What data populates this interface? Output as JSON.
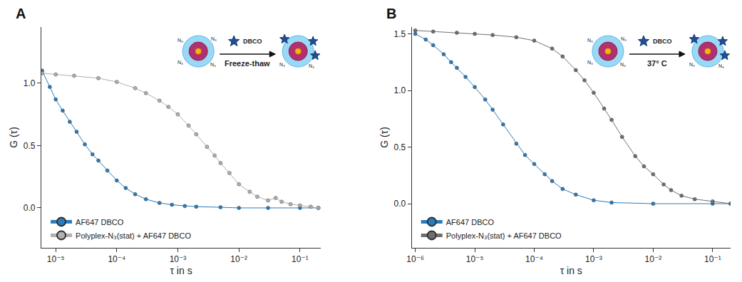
{
  "chart_data": [
    {
      "type": "scatter",
      "title": "A",
      "x_label": "τ in s",
      "y_label": "G (τ)",
      "log": "x",
      "grid": false,
      "legend": "lower left",
      "marker": "circle",
      "xlim": [
        5.8e-06,
        0.22
      ],
      "xticks": [
        {
          "value": 1e-05,
          "label": "10⁻⁵"
        },
        {
          "value": 0.0001,
          "label": "10⁻⁴"
        },
        {
          "value": 0.001,
          "label": "10⁻³"
        },
        {
          "value": 0.01,
          "label": "10⁻²"
        },
        {
          "value": 0.1,
          "label": "10⁻¹"
        }
      ],
      "ylim": [
        -0.32,
        1.45
      ],
      "yticks": [
        {
          "value": 0,
          "label": "0.0"
        },
        {
          "value": 0.5,
          "label": "0.5"
        },
        {
          "value": 1,
          "label": "1.0"
        }
      ],
      "annotations": {
        "reagent": "DBCO",
        "condition": "Freeze-thaw",
        "surface_group": "N₃"
      },
      "series": [
        {
          "name": "AF647 DBCO",
          "color": "#2b7bba",
          "x": [
            6e-06,
            8e-06,
            1e-05,
            1.3e-05,
            1.7e-05,
            2.2e-05,
            3e-05,
            4e-05,
            5e-05,
            7e-05,
            0.0001,
            0.00014,
            0.0002,
            0.0003,
            0.0005,
            0.0008,
            0.0013,
            0.002,
            0.005,
            0.01,
            0.03,
            0.1,
            0.2
          ],
          "values": [
            1.1,
            0.97,
            0.87,
            0.78,
            0.69,
            0.61,
            0.51,
            0.43,
            0.38,
            0.3,
            0.22,
            0.16,
            0.11,
            0.07,
            0.04,
            0.025,
            0.015,
            0.01,
            0.005,
            0.0,
            0.0,
            0.0,
            0.0
          ]
        },
        {
          "name": "Polyplex-N₃(stat) + AF647 DBCO",
          "color": "#b0b0b0",
          "x": [
            6e-06,
            1e-05,
            2e-05,
            5e-05,
            0.0001,
            0.0002,
            0.0003,
            0.0005,
            0.0007,
            0.001,
            0.0015,
            0.002,
            0.003,
            0.004,
            0.005,
            0.007,
            0.01,
            0.015,
            0.02,
            0.03,
            0.04,
            0.05,
            0.07,
            0.1,
            0.15,
            0.2
          ],
          "values": [
            1.08,
            1.07,
            1.06,
            1.04,
            1.01,
            0.96,
            0.92,
            0.86,
            0.81,
            0.75,
            0.66,
            0.59,
            0.49,
            0.42,
            0.36,
            0.28,
            0.19,
            0.13,
            0.09,
            0.06,
            0.08,
            0.05,
            0.03,
            0.02,
            0.01,
            0.0
          ]
        }
      ]
    },
    {
      "type": "scatter",
      "title": "B",
      "x_label": "τ in s",
      "y_label": "G (τ)",
      "log": "x",
      "grid": false,
      "legend": "lower left",
      "marker": "circle",
      "xlim": [
        8.7e-07,
        0.2
      ],
      "xticks": [
        {
          "value": 1e-06,
          "label": "10⁻⁶"
        },
        {
          "value": 1e-05,
          "label": "10⁻⁵"
        },
        {
          "value": 0.0001,
          "label": "10⁻⁴"
        },
        {
          "value": 0.001,
          "label": "10⁻³"
        },
        {
          "value": 0.01,
          "label": "10⁻²"
        },
        {
          "value": 0.1,
          "label": "10⁻¹"
        }
      ],
      "ylim": [
        -0.39,
        1.56
      ],
      "yticks": [
        {
          "value": 0,
          "label": "0.0"
        },
        {
          "value": 0.5,
          "label": "0.5"
        },
        {
          "value": 1,
          "label": "1.0"
        },
        {
          "value": 1.5,
          "label": "1.5"
        }
      ],
      "annotations": {
        "reagent": "DBCO",
        "condition": "37° C",
        "surface_group": "N₃"
      },
      "series": [
        {
          "name": "AF647 DBCO",
          "color": "#2b7bba",
          "x": [
            1e-06,
            1.5e-06,
            2e-06,
            3e-06,
            4e-06,
            5e-06,
            7e-06,
            1e-05,
            1.5e-05,
            2e-05,
            3e-05,
            5e-05,
            7e-05,
            0.0001,
            0.00015,
            0.0002,
            0.0003,
            0.0005,
            0.001,
            0.002,
            0.01,
            0.1,
            0.2
          ],
          "values": [
            1.5,
            1.45,
            1.4,
            1.32,
            1.25,
            1.2,
            1.12,
            1.03,
            0.92,
            0.83,
            0.7,
            0.53,
            0.43,
            0.35,
            0.26,
            0.2,
            0.13,
            0.08,
            0.03,
            0.01,
            0.0,
            0.0,
            0.0
          ]
        },
        {
          "name": "Polyplex-N₃(stat) + AF647 DBCO",
          "color": "#6f6f6f",
          "x": [
            1e-06,
            2e-06,
            5e-06,
            1e-05,
            2e-05,
            5e-05,
            0.0001,
            0.0002,
            0.0003,
            0.0005,
            0.0007,
            0.001,
            0.0015,
            0.002,
            0.003,
            0.005,
            0.007,
            0.01,
            0.015,
            0.02,
            0.03,
            0.05,
            0.1,
            0.2
          ],
          "values": [
            1.53,
            1.52,
            1.51,
            1.5,
            1.49,
            1.47,
            1.44,
            1.37,
            1.3,
            1.18,
            1.09,
            0.98,
            0.84,
            0.74,
            0.59,
            0.42,
            0.33,
            0.26,
            0.17,
            0.12,
            0.07,
            0.04,
            0.02,
            0.0
          ]
        }
      ]
    }
  ]
}
